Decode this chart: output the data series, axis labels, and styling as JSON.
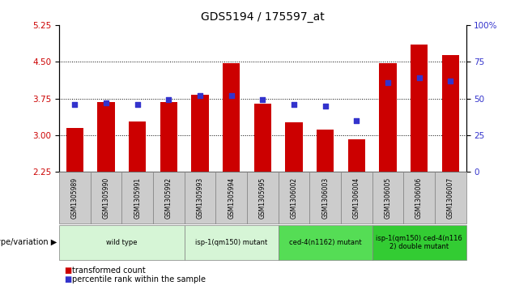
{
  "title": "GDS5194 / 175597_at",
  "samples": [
    "GSM1305989",
    "GSM1305990",
    "GSM1305991",
    "GSM1305992",
    "GSM1305993",
    "GSM1305994",
    "GSM1305995",
    "GSM1306002",
    "GSM1306003",
    "GSM1306004",
    "GSM1306005",
    "GSM1306006",
    "GSM1306007"
  ],
  "transformed_count": [
    3.15,
    3.68,
    3.28,
    3.67,
    3.82,
    4.47,
    3.65,
    3.26,
    3.12,
    2.92,
    4.47,
    4.85,
    4.63
  ],
  "percentile_rank": [
    46,
    47,
    46,
    49,
    52,
    52,
    49,
    46,
    45,
    35,
    61,
    64,
    62
  ],
  "ylim_left": [
    2.25,
    5.25
  ],
  "ylim_right": [
    0,
    100
  ],
  "yticks_left": [
    2.25,
    3.0,
    3.75,
    4.5,
    5.25
  ],
  "yticks_right": [
    0,
    25,
    50,
    75,
    100
  ],
  "hlines": [
    3.0,
    3.75,
    4.5
  ],
  "bar_color": "#cc0000",
  "dot_color": "#3333cc",
  "bar_bottom": 2.25,
  "genotype_groups": [
    {
      "label": "wild type",
      "indices": [
        0,
        1,
        2,
        3
      ],
      "color": "#d6f5d6"
    },
    {
      "label": "isp-1(qm150) mutant",
      "indices": [
        4,
        5,
        6
      ],
      "color": "#d6f5d6"
    },
    {
      "label": "ced-4(n1162) mutant",
      "indices": [
        7,
        8,
        9
      ],
      "color": "#55dd55"
    },
    {
      "label": "isp-1(qm150) ced-4(n116\n2) double mutant",
      "indices": [
        10,
        11,
        12
      ],
      "color": "#33cc33"
    }
  ],
  "tick_box_color": "#cccccc",
  "xlabel_color": "#cc0000",
  "ylabel_right_color": "#3333cc",
  "background_chart": "#ffffff",
  "legend_label_bar": "transformed count",
  "legend_label_dot": "percentile rank within the sample",
  "genotype_label": "genotype/variation"
}
